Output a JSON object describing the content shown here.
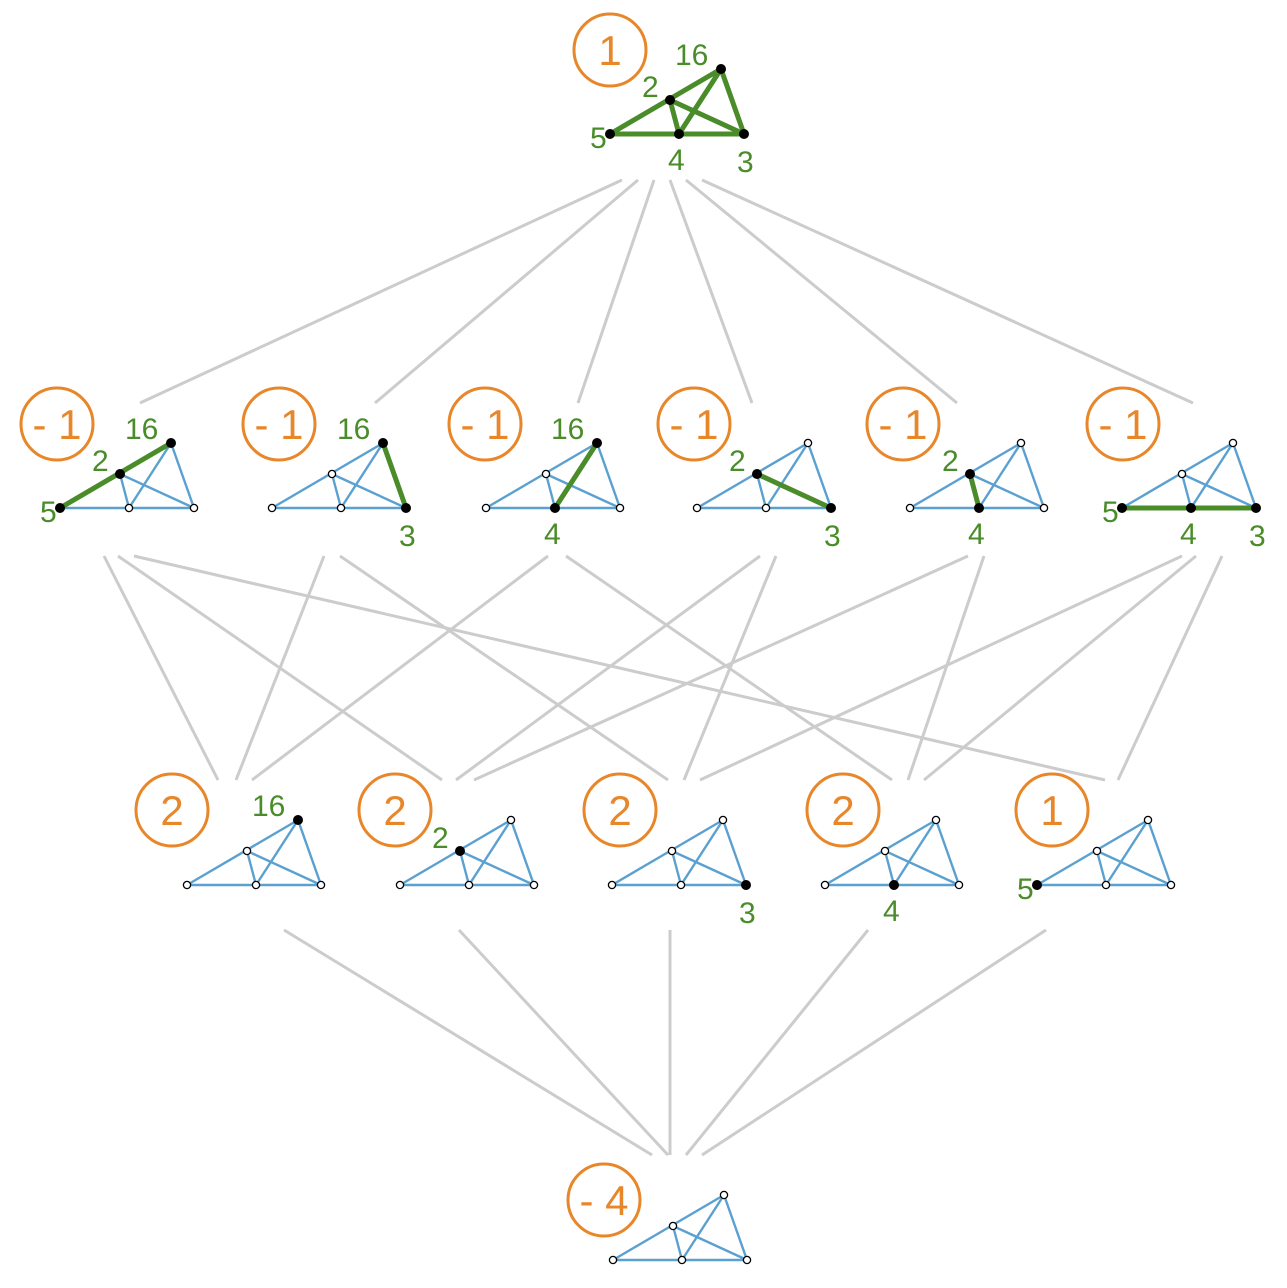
{
  "colors": {
    "badge": "#e8862a",
    "label": "#4a8c2a",
    "edge": "#cccccc",
    "line": "#5aa0d0",
    "highlight": "#4a8c2a"
  },
  "nodes": [
    {
      "id": "top",
      "badge": "1",
      "points": {
        "p16": true,
        "p2": true,
        "p5": true,
        "p4": true,
        "p3": true
      },
      "labels": {
        "p16": "16",
        "p2": "2",
        "p5": "5",
        "p4": "4",
        "p3": "3"
      },
      "highlight": [
        [
          "p5",
          "p3"
        ],
        [
          "p5",
          "p16"
        ],
        [
          "p2",
          "p3"
        ],
        [
          "p16",
          "p4"
        ],
        [
          "p16",
          "p3"
        ],
        [
          "p2",
          "p4"
        ]
      ]
    },
    {
      "id": "r1-a",
      "badge": "- 1",
      "points": {
        "p16": true,
        "p2": true,
        "p5": true
      },
      "labels": {
        "p16": "16",
        "p2": "2",
        "p5": "5"
      },
      "highlight": [
        [
          "p5",
          "p16"
        ]
      ]
    },
    {
      "id": "r1-b",
      "badge": "- 1",
      "points": {
        "p16": true,
        "p3": true
      },
      "labels": {
        "p16": "16",
        "p3": "3"
      },
      "highlight": [
        [
          "p16",
          "p3"
        ]
      ]
    },
    {
      "id": "r1-c",
      "badge": "- 1",
      "points": {
        "p16": true,
        "p4": true
      },
      "labels": {
        "p16": "16",
        "p4": "4"
      },
      "highlight": [
        [
          "p16",
          "p4"
        ]
      ]
    },
    {
      "id": "r1-d",
      "badge": "- 1",
      "points": {
        "p2": true,
        "p3": true
      },
      "labels": {
        "p2": "2",
        "p3": "3"
      },
      "highlight": [
        [
          "p2",
          "p3"
        ]
      ]
    },
    {
      "id": "r1-e",
      "badge": "- 1",
      "points": {
        "p2": true,
        "p4": true
      },
      "labels": {
        "p2": "2",
        "p4": "4"
      },
      "highlight": [
        [
          "p2",
          "p4"
        ]
      ]
    },
    {
      "id": "r1-f",
      "badge": "- 1",
      "points": {
        "p5": true,
        "p4": true,
        "p3": true
      },
      "labels": {
        "p5": "5",
        "p4": "4",
        "p3": "3"
      },
      "highlight": [
        [
          "p5",
          "p3"
        ]
      ]
    },
    {
      "id": "r2-a",
      "badge": "2",
      "points": {
        "p16": true
      },
      "labels": {
        "p16": "16"
      },
      "highlight": []
    },
    {
      "id": "r2-b",
      "badge": "2",
      "points": {
        "p2": true
      },
      "labels": {
        "p2": "2"
      },
      "highlight": []
    },
    {
      "id": "r2-c",
      "badge": "2",
      "points": {
        "p3": true
      },
      "labels": {
        "p3": "3"
      },
      "highlight": []
    },
    {
      "id": "r2-d",
      "badge": "2",
      "points": {
        "p4": true
      },
      "labels": {
        "p4": "4"
      },
      "highlight": []
    },
    {
      "id": "r2-e",
      "badge": "1",
      "points": {
        "p5": true
      },
      "labels": {
        "p5": "5"
      },
      "highlight": []
    },
    {
      "id": "bottom",
      "badge": "- 4",
      "points": {},
      "labels": {},
      "highlight": []
    }
  ]
}
